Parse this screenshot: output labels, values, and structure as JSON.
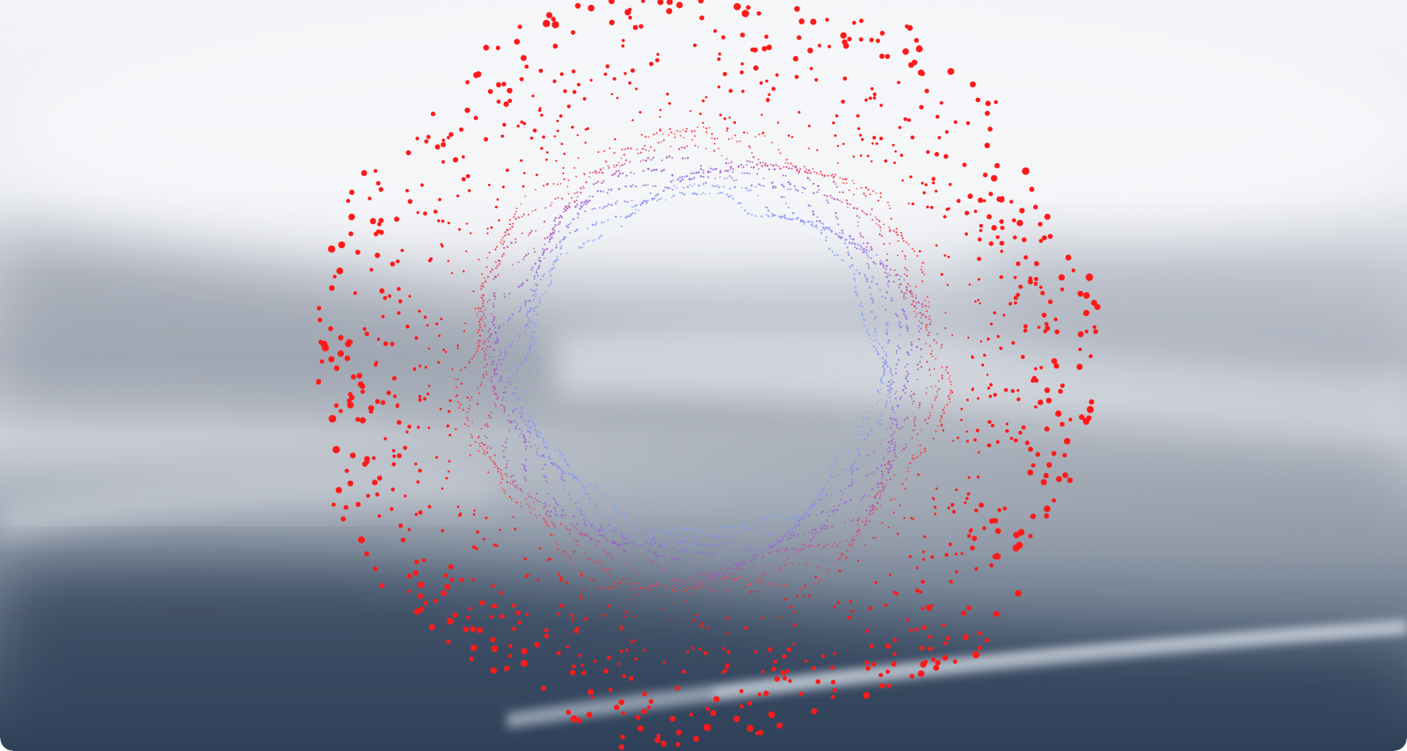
{
  "scene": {
    "subject": "particle-ring",
    "colors": {
      "outer_dots": "#ff1a1a",
      "inner_ring_start": "#ff3b3b",
      "inner_ring_mid": "#9a55d6",
      "inner_ring_end": "#7fa0ff",
      "sky_top": "#f4f5f8",
      "sky_mid": "#d6d9e0",
      "band_dark": "#8f98a6",
      "sea_bottom": "#2b3f58"
    }
  }
}
